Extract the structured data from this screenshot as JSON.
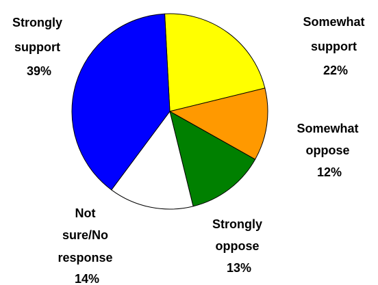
{
  "chart_data": {
    "type": "pie",
    "title": "",
    "start_angle_deg": 93,
    "direction": "clockwise",
    "slices": [
      {
        "label_lines": [
          "Somewhat",
          "support"
        ],
        "pct_text": "22%",
        "value": 22,
        "color": "#FFFF00"
      },
      {
        "label_lines": [
          "Somewhat",
          "oppose"
        ],
        "pct_text": "12%",
        "value": 12,
        "color": "#FF9900"
      },
      {
        "label_lines": [
          "Strongly",
          "oppose"
        ],
        "pct_text": "13%",
        "value": 13,
        "color": "#008000"
      },
      {
        "label_lines": [
          "Not",
          "sure/No",
          "response"
        ],
        "pct_text": "14%",
        "value": 14,
        "color": "#FFFFFF"
      },
      {
        "label_lines": [
          "Strongly",
          "support"
        ],
        "pct_text": "39%",
        "value": 39,
        "color": "#0000FF"
      }
    ]
  }
}
